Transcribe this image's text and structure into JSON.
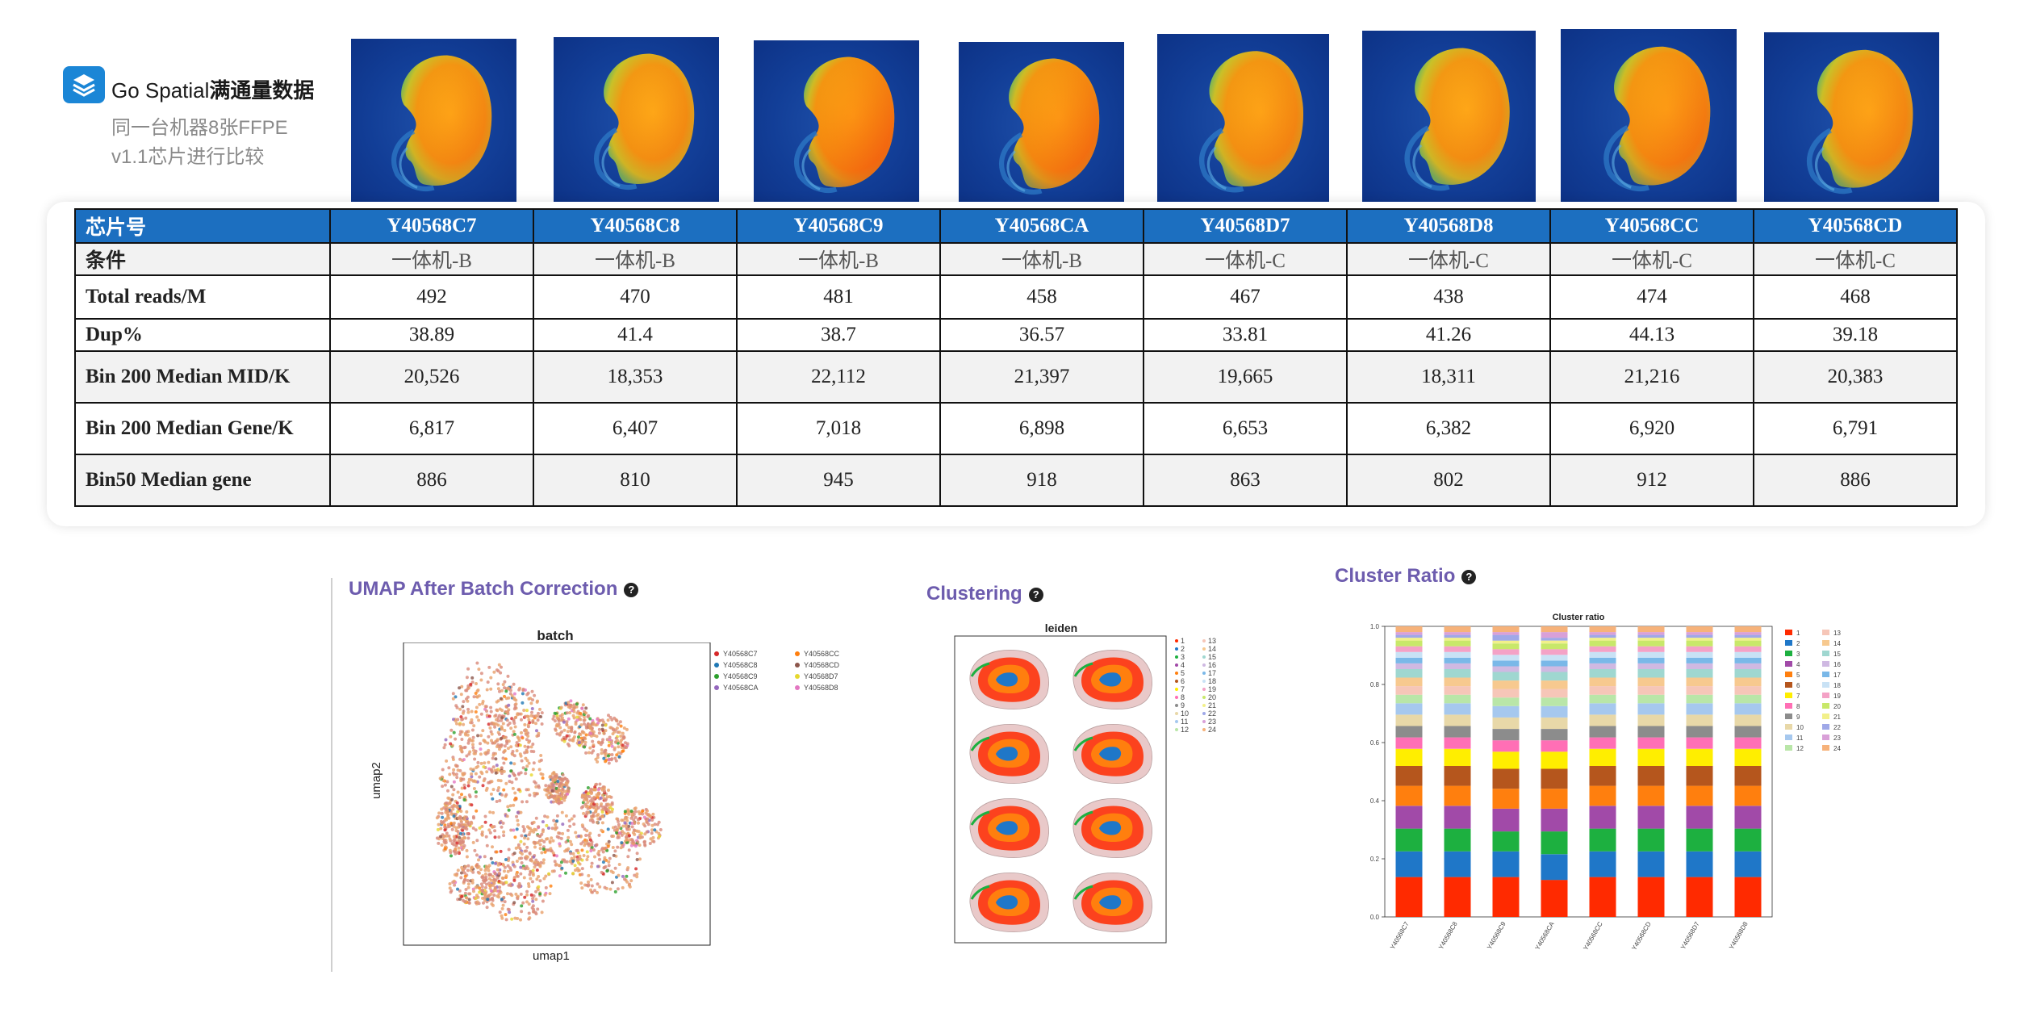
{
  "header": {
    "app_name": "Go Spatial",
    "app_tagline": "满通量数据",
    "subtitle_line1": "同一台机器8张FFPE",
    "subtitle_line2": "v1.1芯片进行比较"
  },
  "table": {
    "corner_label": "芯片号",
    "chips": [
      "Y40568C7",
      "Y40568C8",
      "Y40568C9",
      "Y40568CA",
      "Y40568D7",
      "Y40568D8",
      "Y40568CC",
      "Y40568CD"
    ],
    "rows": [
      {
        "label": "条件",
        "values": [
          "一体机-B",
          "一体机-B",
          "一体机-B",
          "一体机-B",
          "一体机-C",
          "一体机-C",
          "一体机-C",
          "一体机-C"
        ]
      },
      {
        "label": "Total reads/M",
        "values": [
          "492",
          "470",
          "481",
          "458",
          "467",
          "438",
          "474",
          "468"
        ]
      },
      {
        "label": "Dup%",
        "values": [
          "38.89",
          "41.4",
          "38.7",
          "36.57",
          "33.81",
          "41.26",
          "44.13",
          "39.18"
        ]
      },
      {
        "label": "Bin 200 Median MID/K",
        "values": [
          "20,526",
          "18,353",
          "22,112",
          "21,397",
          "19,665",
          "18,311",
          "21,216",
          "20,383"
        ]
      },
      {
        "label": "Bin 200 Median Gene/K",
        "values": [
          "6,817",
          "6,407",
          "7,018",
          "6,898",
          "6,653",
          "6,382",
          "6,920",
          "6,791"
        ]
      },
      {
        "label": "Bin50 Median gene",
        "values": [
          "886",
          "810",
          "945",
          "918",
          "863",
          "802",
          "912",
          "886"
        ]
      }
    ]
  },
  "panels": {
    "umap": {
      "title": "UMAP After Batch Correction",
      "help": "?",
      "plot_title": "batch",
      "xlabel": "umap1",
      "ylabel": "umap2",
      "legend": [
        {
          "name": "Y40568C7",
          "color": "#d62728"
        },
        {
          "name": "Y40568C8",
          "color": "#1f77b4"
        },
        {
          "name": "Y40568C9",
          "color": "#2ca02c"
        },
        {
          "name": "Y40568CA",
          "color": "#9467bd"
        },
        {
          "name": "Y40568CC",
          "color": "#ff7f0e"
        },
        {
          "name": "Y40568CD",
          "color": "#8c564b"
        },
        {
          "name": "Y40568D7",
          "color": "#e6d82e"
        },
        {
          "name": "Y40568D8",
          "color": "#e377c2"
        }
      ]
    },
    "clustering": {
      "title": "Clustering",
      "help": "?",
      "plot_title": "leiden"
    },
    "cluster_ratio": {
      "title": "Cluster Ratio",
      "help": "?",
      "plot_title": "Cluster ratio"
    }
  },
  "colors": {
    "table_header": "#1c6fc0",
    "panel_title": "#6d5cae",
    "logo": "#1b86d6"
  },
  "chart_data": {
    "type": "bar",
    "stacked": true,
    "title": "Cluster ratio",
    "categories": [
      "Y40568C7",
      "Y40568C8",
      "Y40568C9",
      "Y40568CA",
      "Y40568CC",
      "Y40568CD",
      "Y40568D7",
      "Y40568D8"
    ],
    "ylim": [
      0,
      1.0
    ],
    "yticks": [
      "0.0",
      "0.2",
      "0.4",
      "0.6",
      "0.8",
      "1.0"
    ],
    "legend_position": "right",
    "series": [
      {
        "name": "1",
        "color": "#ff2a00",
        "values": [
          0.14,
          0.14,
          0.14,
          0.13,
          0.14,
          0.14,
          0.14,
          0.14
        ]
      },
      {
        "name": "2",
        "color": "#1f77c8",
        "values": [
          0.09,
          0.09,
          0.09,
          0.09,
          0.09,
          0.09,
          0.09,
          0.09
        ]
      },
      {
        "name": "3",
        "color": "#1db040",
        "values": [
          0.08,
          0.08,
          0.07,
          0.08,
          0.08,
          0.08,
          0.08,
          0.08
        ]
      },
      {
        "name": "4",
        "color": "#a14aa8",
        "values": [
          0.08,
          0.08,
          0.08,
          0.08,
          0.08,
          0.08,
          0.08,
          0.08
        ]
      },
      {
        "name": "5",
        "color": "#ff7f0e",
        "values": [
          0.07,
          0.07,
          0.07,
          0.07,
          0.07,
          0.07,
          0.07,
          0.07
        ]
      },
      {
        "name": "6",
        "color": "#b5561d",
        "values": [
          0.07,
          0.07,
          0.07,
          0.07,
          0.07,
          0.07,
          0.07,
          0.07
        ]
      },
      {
        "name": "7",
        "color": "#ffee00",
        "values": [
          0.06,
          0.06,
          0.06,
          0.06,
          0.06,
          0.06,
          0.06,
          0.06
        ]
      },
      {
        "name": "8",
        "color": "#ff6fb5",
        "values": [
          0.04,
          0.04,
          0.04,
          0.04,
          0.04,
          0.04,
          0.04,
          0.04
        ]
      },
      {
        "name": "9",
        "color": "#8c8c8c",
        "values": [
          0.04,
          0.04,
          0.04,
          0.04,
          0.04,
          0.04,
          0.04,
          0.04
        ]
      },
      {
        "name": "10",
        "color": "#e8d8a8",
        "values": [
          0.04,
          0.04,
          0.04,
          0.04,
          0.04,
          0.04,
          0.04,
          0.04
        ]
      },
      {
        "name": "11",
        "color": "#a6c8ee",
        "values": [
          0.04,
          0.04,
          0.04,
          0.04,
          0.04,
          0.04,
          0.04,
          0.04
        ]
      },
      {
        "name": "12",
        "color": "#b9e6a8",
        "values": [
          0.03,
          0.03,
          0.03,
          0.03,
          0.03,
          0.03,
          0.03,
          0.03
        ]
      },
      {
        "name": "13",
        "color": "#f6c6b8",
        "values": [
          0.03,
          0.03,
          0.03,
          0.03,
          0.03,
          0.03,
          0.03,
          0.03
        ]
      },
      {
        "name": "14",
        "color": "#f7c98f",
        "values": [
          0.03,
          0.03,
          0.03,
          0.03,
          0.03,
          0.03,
          0.03,
          0.03
        ]
      },
      {
        "name": "15",
        "color": "#9fd7d0",
        "values": [
          0.03,
          0.03,
          0.03,
          0.03,
          0.03,
          0.03,
          0.03,
          0.03
        ]
      },
      {
        "name": "16",
        "color": "#cfb9e2",
        "values": [
          0.02,
          0.02,
          0.02,
          0.02,
          0.02,
          0.02,
          0.02,
          0.02
        ]
      },
      {
        "name": "17",
        "color": "#7ab8e8",
        "values": [
          0.02,
          0.02,
          0.02,
          0.02,
          0.02,
          0.02,
          0.02,
          0.02
        ]
      },
      {
        "name": "18",
        "color": "#c9e2f5",
        "values": [
          0.02,
          0.02,
          0.02,
          0.02,
          0.02,
          0.02,
          0.02,
          0.02
        ]
      },
      {
        "name": "19",
        "color": "#f4a2c6",
        "values": [
          0.02,
          0.02,
          0.02,
          0.02,
          0.02,
          0.02,
          0.02,
          0.02
        ]
      },
      {
        "name": "20",
        "color": "#c8e86a",
        "values": [
          0.02,
          0.02,
          0.02,
          0.02,
          0.02,
          0.02,
          0.02,
          0.02
        ]
      },
      {
        "name": "21",
        "color": "#f2f08a",
        "values": [
          0.01,
          0.01,
          0.01,
          0.01,
          0.01,
          0.01,
          0.01,
          0.01
        ]
      },
      {
        "name": "22",
        "color": "#9fa8e8",
        "values": [
          0.01,
          0.01,
          0.02,
          0.01,
          0.01,
          0.01,
          0.01,
          0.01
        ]
      },
      {
        "name": "23",
        "color": "#d9a0d8",
        "values": [
          0.01,
          0.01,
          0.01,
          0.02,
          0.01,
          0.01,
          0.01,
          0.01
        ]
      },
      {
        "name": "24",
        "color": "#f6b27a",
        "values": [
          0.02,
          0.02,
          0.02,
          0.02,
          0.02,
          0.02,
          0.02,
          0.02
        ]
      }
    ]
  }
}
